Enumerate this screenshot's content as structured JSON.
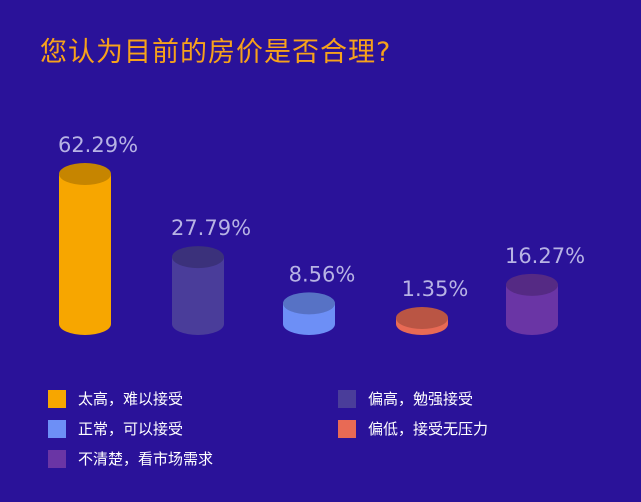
{
  "title": "您认为目前的房价是否合理?",
  "chart_data": {
    "type": "bar",
    "categories": [
      "太高，难以接受",
      "偏高，勉强接受",
      "正常，可以接受",
      "偏低，接受无压力",
      "不清楚，看市场需求"
    ],
    "values": [
      62.29,
      27.79,
      8.56,
      1.35,
      16.27
    ],
    "value_labels": [
      "62.29%",
      "27.79%",
      "8.56%",
      "1.35%",
      "16.27%"
    ],
    "unit": "%",
    "colors": [
      "#f7a600",
      "#4a3d9a",
      "#6d8ff6",
      "#e86a55",
      "#6a35a5"
    ],
    "ylim": [
      0,
      62.29
    ],
    "grid": false,
    "legend": "bottom"
  }
}
